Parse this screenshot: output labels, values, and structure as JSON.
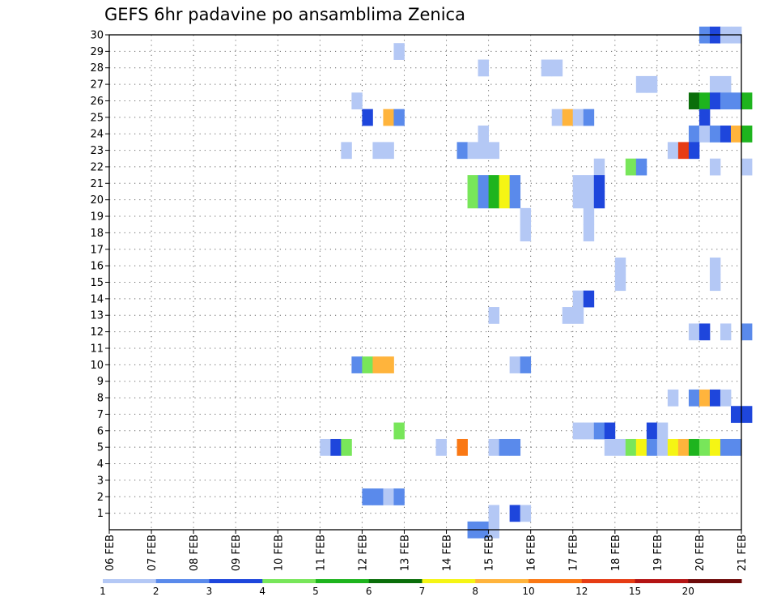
{
  "chart_data": {
    "type": "heatmap",
    "title": "GEFS 6hr padavine po ansamblima Zenica",
    "xlabel": "",
    "ylabel": "",
    "x_tick_labels": [
      "06 FEB",
      "07 FEB",
      "08 FEB",
      "09 FEB",
      "10 FEB",
      "11 FEB",
      "12 FEB",
      "13 FEB",
      "14 FEB",
      "15 FEB",
      "16 FEB",
      "17 FEB",
      "18 FEB",
      "19 FEB",
      "20 FEB",
      "21 FEB"
    ],
    "y_tick_labels": [
      "1",
      "2",
      "3",
      "4",
      "5",
      "6",
      "7",
      "8",
      "9",
      "10",
      "11",
      "12",
      "13",
      "14",
      "15",
      "16",
      "17",
      "18",
      "19",
      "20",
      "21",
      "22",
      "23",
      "24",
      "25",
      "26",
      "27",
      "28",
      "29",
      "30"
    ],
    "x_range_steps": [
      0,
      60
    ],
    "y_range": [
      0,
      30
    ],
    "grid": true,
    "colorbar": {
      "labels": [
        "1",
        "2",
        "3",
        "4",
        "5",
        "6",
        "7",
        "8",
        "10",
        "12",
        "15",
        "20"
      ],
      "colors": [
        "#b4c8f5",
        "#5a8aeb",
        "#1e46dc",
        "#78e65a",
        "#1eb41e",
        "#0a6e0a",
        "#f5f514",
        "#ffb43c",
        "#fa7814",
        "#e63c14",
        "#b41414",
        "#6e0a0a"
      ]
    },
    "cells_note": "each cell: [member (y), 6-hour step since 06 FEB 00Z (x), precipitation category index into colorbar.colors]",
    "cells": [
      [
        30,
        56,
        1
      ],
      [
        30,
        57,
        2
      ],
      [
        30,
        58,
        0
      ],
      [
        30,
        59,
        0
      ],
      [
        29,
        27,
        0
      ],
      [
        28,
        35,
        0
      ],
      [
        28,
        41,
        0
      ],
      [
        28,
        42,
        0
      ],
      [
        27,
        50,
        0
      ],
      [
        27,
        51,
        0
      ],
      [
        27,
        57,
        0
      ],
      [
        27,
        58,
        0
      ],
      [
        26,
        23,
        0
      ],
      [
        26,
        55,
        5
      ],
      [
        26,
        56,
        4
      ],
      [
        26,
        57,
        2
      ],
      [
        26,
        58,
        1
      ],
      [
        26,
        59,
        1
      ],
      [
        26,
        60,
        4
      ],
      [
        25,
        24,
        2
      ],
      [
        25,
        26,
        7
      ],
      [
        25,
        27,
        1
      ],
      [
        25,
        42,
        0
      ],
      [
        25,
        43,
        7
      ],
      [
        25,
        44,
        0
      ],
      [
        25,
        45,
        1
      ],
      [
        25,
        56,
        2
      ],
      [
        24,
        35,
        0
      ],
      [
        24,
        55,
        1
      ],
      [
        24,
        56,
        0
      ],
      [
        24,
        57,
        1
      ],
      [
        24,
        58,
        2
      ],
      [
        24,
        59,
        7
      ],
      [
        24,
        60,
        4
      ],
      [
        23,
        22,
        0
      ],
      [
        23,
        25,
        0
      ],
      [
        23,
        26,
        0
      ],
      [
        23,
        33,
        1
      ],
      [
        23,
        34,
        0
      ],
      [
        23,
        35,
        0
      ],
      [
        23,
        36,
        0
      ],
      [
        23,
        53,
        0
      ],
      [
        23,
        54,
        9
      ],
      [
        23,
        55,
        2
      ],
      [
        22,
        46,
        0
      ],
      [
        22,
        49,
        3
      ],
      [
        22,
        50,
        1
      ],
      [
        22,
        57,
        0
      ],
      [
        22,
        60,
        0
      ],
      [
        21,
        34,
        3
      ],
      [
        21,
        35,
        1
      ],
      [
        21,
        36,
        4
      ],
      [
        21,
        37,
        6
      ],
      [
        21,
        38,
        1
      ],
      [
        21,
        44,
        0
      ],
      [
        21,
        45,
        0
      ],
      [
        21,
        46,
        2
      ],
      [
        20,
        34,
        3
      ],
      [
        20,
        35,
        1
      ],
      [
        20,
        36,
        4
      ],
      [
        20,
        37,
        6
      ],
      [
        20,
        38,
        1
      ],
      [
        20,
        44,
        0
      ],
      [
        20,
        45,
        0
      ],
      [
        20,
        46,
        2
      ],
      [
        19,
        39,
        0
      ],
      [
        19,
        45,
        0
      ],
      [
        18,
        39,
        0
      ],
      [
        18,
        45,
        0
      ],
      [
        16,
        48,
        0
      ],
      [
        16,
        57,
        0
      ],
      [
        15,
        48,
        0
      ],
      [
        15,
        57,
        0
      ],
      [
        14,
        44,
        0
      ],
      [
        14,
        45,
        2
      ],
      [
        13,
        36,
        0
      ],
      [
        13,
        43,
        0
      ],
      [
        13,
        44,
        0
      ],
      [
        12,
        55,
        0
      ],
      [
        12,
        56,
        2
      ],
      [
        12,
        58,
        0
      ],
      [
        12,
        60,
        1
      ],
      [
        10,
        23,
        1
      ],
      [
        10,
        24,
        3
      ],
      [
        10,
        25,
        7
      ],
      [
        10,
        26,
        7
      ],
      [
        10,
        38,
        0
      ],
      [
        10,
        39,
        1
      ],
      [
        8,
        53,
        0
      ],
      [
        8,
        55,
        1
      ],
      [
        8,
        56,
        7
      ],
      [
        8,
        57,
        2
      ],
      [
        8,
        58,
        0
      ],
      [
        7,
        59,
        2
      ],
      [
        7,
        60,
        2
      ],
      [
        6,
        27,
        3
      ],
      [
        6,
        44,
        0
      ],
      [
        6,
        45,
        0
      ],
      [
        6,
        46,
        1
      ],
      [
        6,
        47,
        2
      ],
      [
        6,
        51,
        2
      ],
      [
        6,
        52,
        0
      ],
      [
        5,
        20,
        0
      ],
      [
        5,
        21,
        2
      ],
      [
        5,
        22,
        3
      ],
      [
        5,
        31,
        0
      ],
      [
        5,
        33,
        8
      ],
      [
        5,
        36,
        0
      ],
      [
        5,
        37,
        1
      ],
      [
        5,
        38,
        1
      ],
      [
        5,
        47,
        0
      ],
      [
        5,
        48,
        0
      ],
      [
        5,
        49,
        3
      ],
      [
        5,
        50,
        6
      ],
      [
        5,
        51,
        1
      ],
      [
        5,
        52,
        0
      ],
      [
        5,
        53,
        6
      ],
      [
        5,
        54,
        7
      ],
      [
        5,
        55,
        4
      ],
      [
        5,
        56,
        3
      ],
      [
        5,
        57,
        6
      ],
      [
        5,
        58,
        1
      ],
      [
        5,
        59,
        1
      ],
      [
        2,
        24,
        1
      ],
      [
        2,
        25,
        1
      ],
      [
        2,
        26,
        0
      ],
      [
        2,
        27,
        1
      ],
      [
        1,
        36,
        0
      ],
      [
        1,
        38,
        2
      ],
      [
        1,
        39,
        0
      ],
      [
        0,
        34,
        1
      ],
      [
        0,
        35,
        1
      ],
      [
        0,
        36,
        0
      ]
    ]
  }
}
